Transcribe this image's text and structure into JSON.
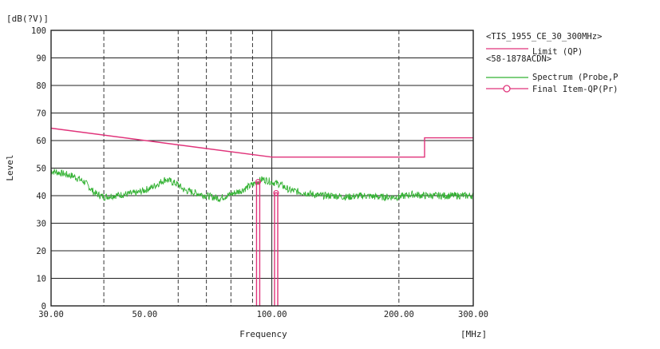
{
  "chart_data": {
    "type": "line",
    "unit_label": "[dB(?V)]",
    "ylabel": "Level",
    "xlabel": "Frequency",
    "x_unit": "[MHz]",
    "x_scale": "log",
    "xlim": [
      30,
      300
    ],
    "ylim": [
      0,
      100
    ],
    "grid": true,
    "legend_position": "right",
    "x_ticks": [
      30,
      50,
      100,
      200,
      300
    ],
    "x_tick_labels": [
      "30.00",
      "50.00",
      "100.00",
      "200.00",
      "300.00"
    ],
    "x_dashed_grid": [
      40,
      60,
      70,
      80,
      90,
      200
    ],
    "x_solid_grid": [
      100
    ],
    "y_ticks": [
      0,
      10,
      20,
      30,
      40,
      50,
      60,
      70,
      80,
      90,
      100
    ],
    "legend": {
      "header1": "<TIS_1955_CE_30_300MHz>",
      "header2": "<58-1878ACDN>",
      "items": [
        {
          "label": "Limit (QP)",
          "color": "#e0337a",
          "marker": "line"
        },
        {
          "label": "Spectrum (Probe,P",
          "color": "#33b233",
          "marker": "line"
        },
        {
          "label": "Final Item-QP(Pr)",
          "color": "#e0337a",
          "marker": "circle-line"
        }
      ]
    },
    "series": [
      {
        "name": "Limit (QP)",
        "color": "#e0337a",
        "x": [
          30,
          100,
          230,
          230,
          300
        ],
        "y": [
          64.5,
          54,
          54,
          61,
          61
        ]
      },
      {
        "name": "Spectrum (Probe,P",
        "color": "#33b233",
        "x": [
          30,
          32,
          34,
          36,
          38,
          40,
          42,
          45,
          48,
          52,
          56,
          60,
          62,
          66,
          70,
          75,
          80,
          85,
          90,
          95,
          100,
          105,
          110,
          120,
          130,
          140,
          150,
          165,
          180,
          200,
          215,
          230,
          250,
          275,
          300,
          300
        ],
        "y": [
          49,
          48,
          47,
          45,
          41,
          39.5,
          40,
          40.5,
          41,
          43,
          46,
          44,
          42,
          41,
          40,
          39,
          40.5,
          42,
          44,
          46,
          45,
          44,
          42,
          41,
          40,
          40,
          39.5,
          40,
          39.5,
          39.5,
          40.5,
          40,
          40,
          40,
          40,
          19
        ]
      },
      {
        "name": "Final Item-QP(Pr)",
        "color": "#e0337a",
        "marker": "circle",
        "x": [
          92,
          101.5
        ],
        "y": [
          45,
          41
        ]
      }
    ]
  }
}
